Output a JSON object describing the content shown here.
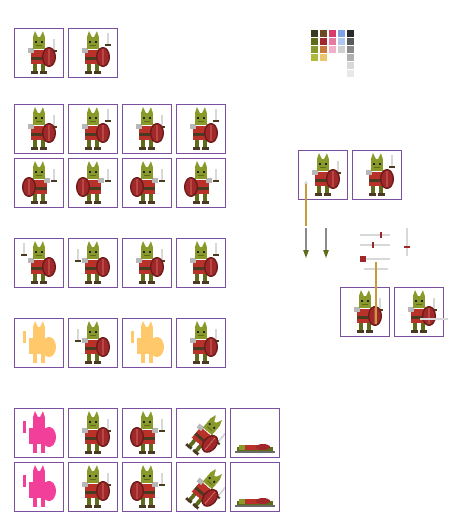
{
  "sheet": {
    "type": "sprite-sheet",
    "character": "goblin-warrior",
    "colors": {
      "frame_border": "#7a4f9e",
      "skin": "#8a9a2a",
      "skin_dark": "#5e6b1a",
      "tunic": "#b8322a",
      "armor": "#b8b8b8",
      "shield": "#a0282a",
      "shield_rim": "#6b1a18",
      "boots": "#4a3a22",
      "silhouette_yellow": "#ffc86a",
      "silhouette_pink": "#f2409a",
      "sword_blade": "#d8d8d8",
      "spear_shaft": "#c89a3a"
    },
    "palette": [
      [
        "#3a3a22",
        "#6b4a22",
        "#d83a6a",
        "#7fa0e8",
        "#2a2a2a"
      ],
      [
        "#5e6b1a",
        "#a0282a",
        "#e87aa0",
        "#b0c8f0",
        "#5a5a5a"
      ],
      [
        "#8a9a2a",
        "#c87a3a",
        "#f0b0c8",
        "#d0d0d0",
        "#8a8a8a"
      ],
      [
        "#b0b83a",
        "#e8c86a",
        "",
        "",
        "#b0b0b0"
      ],
      [
        "",
        "",
        "",
        "",
        "#d8d8d8"
      ],
      [
        "",
        "",
        "",
        "",
        "#e8e8e8"
      ]
    ]
  }
}
